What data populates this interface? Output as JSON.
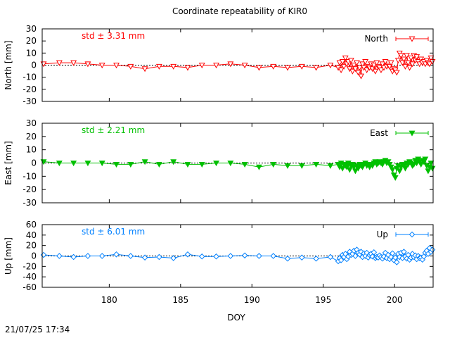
{
  "title": "Coordinate repeatability of KIR0",
  "xlabel": "DOY",
  "timestamp": "21/07/25 17:34",
  "colors": {
    "north": "#ff0000",
    "east": "#00c000",
    "up": "#0080ff"
  },
  "chart_data": [
    {
      "type": "line",
      "component": "North",
      "ylabel": "North [mm]",
      "stat": "std ± 3.31 mm",
      "legend": "North",
      "legend_position": "top-right",
      "marker": "triangle-down-open",
      "color": "#ff0000",
      "xlim": [
        175.3,
        202.7
      ],
      "ylim": [
        -30,
        30
      ],
      "yticks": [
        30,
        20,
        10,
        0,
        -10,
        -20,
        -30
      ],
      "xticks": [
        180,
        185,
        190,
        195,
        200
      ],
      "grid": false,
      "x": [
        175.4,
        176.5,
        177.5,
        178.5,
        179.5,
        180.5,
        181.5,
        182.5,
        183.5,
        184.5,
        185.5,
        186.5,
        187.5,
        188.5,
        189.5,
        190.5,
        191.5,
        192.5,
        193.5,
        194.5,
        195.5,
        196.05,
        196.15,
        196.25,
        196.35,
        196.45,
        196.55,
        196.65,
        196.75,
        196.85,
        196.95,
        197.05,
        197.15,
        197.25,
        197.35,
        197.45,
        197.55,
        197.65,
        197.75,
        197.85,
        197.95,
        198.05,
        198.15,
        198.25,
        198.35,
        198.45,
        198.55,
        198.65,
        198.75,
        198.85,
        198.95,
        199.05,
        199.15,
        199.25,
        199.35,
        199.45,
        199.55,
        199.65,
        199.75,
        199.85,
        199.95,
        200.05,
        200.15,
        200.25,
        200.35,
        200.45,
        200.55,
        200.65,
        200.75,
        200.85,
        200.95,
        201.05,
        201.15,
        201.25,
        201.35,
        201.45,
        201.55,
        201.65,
        201.75,
        201.85,
        201.95,
        202.05,
        202.15,
        202.25,
        202.35,
        202.45,
        202.55,
        202.65
      ],
      "y": [
        1,
        2,
        2,
        1,
        0,
        0,
        -1,
        -3,
        -1,
        -1,
        -2,
        0,
        0,
        1,
        0,
        -2,
        -1,
        -2,
        -1,
        -2,
        0,
        -2,
        2,
        -4,
        3,
        -1,
        6,
        1,
        3,
        -3,
        4,
        -5,
        0,
        -3,
        2,
        -6,
        -2,
        -9,
        1,
        -2,
        3,
        -4,
        -1,
        -2,
        1,
        -3,
        0,
        -5,
        2,
        -1,
        -2,
        -4,
        1,
        -2,
        3,
        -1,
        0,
        -1,
        2,
        -5,
        -3,
        -4,
        -6,
        4,
        10,
        8,
        2,
        5,
        -1,
        8,
        2,
        -2,
        6,
        1,
        8,
        4,
        7,
        3,
        1,
        5,
        2,
        3,
        1,
        4,
        2,
        1,
        6,
        3
      ]
    },
    {
      "type": "line",
      "component": "East",
      "ylabel": "East [mm]",
      "stat": "std ± 2.21 mm",
      "legend": "East",
      "legend_position": "top-right",
      "marker": "triangle-down-filled",
      "color": "#00c000",
      "xlim": [
        175.3,
        202.7
      ],
      "ylim": [
        -30,
        30
      ],
      "yticks": [
        30,
        20,
        10,
        0,
        -10,
        -20,
        -30
      ],
      "xticks": [
        180,
        185,
        190,
        195,
        200
      ],
      "grid": false,
      "x": [
        175.4,
        176.5,
        177.5,
        178.5,
        179.5,
        180.5,
        181.5,
        182.5,
        183.5,
        184.5,
        185.5,
        186.5,
        187.5,
        188.5,
        189.5,
        190.5,
        191.5,
        192.5,
        193.5,
        194.5,
        195.5,
        196.05,
        196.15,
        196.25,
        196.35,
        196.45,
        196.55,
        196.65,
        196.75,
        196.85,
        196.95,
        197.05,
        197.15,
        197.25,
        197.35,
        197.45,
        197.55,
        197.65,
        197.75,
        197.85,
        197.95,
        198.05,
        198.15,
        198.25,
        198.35,
        198.45,
        198.55,
        198.65,
        198.75,
        198.85,
        198.95,
        199.05,
        199.15,
        199.25,
        199.35,
        199.45,
        199.55,
        199.65,
        199.75,
        199.85,
        199.95,
        200.05,
        200.15,
        200.25,
        200.35,
        200.45,
        200.55,
        200.65,
        200.75,
        200.85,
        200.95,
        201.05,
        201.15,
        201.25,
        201.35,
        201.45,
        201.55,
        201.65,
        201.75,
        201.85,
        201.95,
        202.05,
        202.15,
        202.25,
        202.35,
        202.45,
        202.55,
        202.65
      ],
      "y": [
        1,
        0,
        0,
        0,
        0,
        -1,
        -1,
        1,
        -1,
        1,
        -1,
        -1,
        0,
        0,
        -1,
        -3,
        -1,
        -2,
        -2,
        -1,
        -2,
        -1,
        -3,
        0,
        -4,
        -1,
        -2,
        -3,
        0,
        -5,
        -2,
        -1,
        -3,
        -6,
        -2,
        -4,
        -1,
        -2,
        -3,
        -1,
        0,
        -2,
        -1,
        -3,
        -1,
        -2,
        0,
        1,
        -1,
        0,
        1,
        0,
        -1,
        1,
        2,
        0,
        1,
        -1,
        -3,
        -5,
        -9,
        -11,
        -4,
        -2,
        -6,
        -3,
        -1,
        -2,
        -4,
        0,
        -1,
        1,
        0,
        -2,
        -1,
        2,
        0,
        3,
        1,
        -1,
        2,
        1,
        3,
        -2,
        -6,
        -3,
        0,
        -4
      ]
    },
    {
      "type": "line",
      "component": "Up",
      "ylabel": "Up [mm]",
      "stat": "std ± 6.01 mm",
      "legend": "Up",
      "legend_position": "top-right",
      "marker": "diamond-open",
      "color": "#0080ff",
      "xlim": [
        175.3,
        202.7
      ],
      "ylim": [
        -60,
        60
      ],
      "yticks": [
        60,
        40,
        20,
        0,
        -20,
        -40,
        -60
      ],
      "xticks": [
        180,
        185,
        190,
        195,
        200
      ],
      "grid": false,
      "x": [
        175.4,
        176.5,
        177.5,
        178.5,
        179.5,
        180.5,
        181.5,
        182.5,
        183.5,
        184.5,
        185.5,
        186.5,
        187.5,
        188.5,
        189.5,
        190.5,
        191.5,
        192.5,
        193.5,
        194.5,
        195.5,
        196.05,
        196.15,
        196.25,
        196.35,
        196.45,
        196.55,
        196.65,
        196.75,
        196.85,
        196.95,
        197.05,
        197.15,
        197.25,
        197.35,
        197.45,
        197.55,
        197.65,
        197.75,
        197.85,
        197.95,
        198.05,
        198.15,
        198.25,
        198.35,
        198.45,
        198.55,
        198.65,
        198.75,
        198.85,
        198.95,
        199.05,
        199.15,
        199.25,
        199.35,
        199.45,
        199.55,
        199.65,
        199.75,
        199.85,
        199.95,
        200.05,
        200.15,
        200.25,
        200.35,
        200.45,
        200.55,
        200.65,
        200.75,
        200.85,
        200.95,
        201.05,
        201.15,
        201.25,
        201.35,
        201.45,
        201.55,
        201.65,
        201.75,
        201.85,
        201.95,
        202.05,
        202.15,
        202.25,
        202.35,
        202.45,
        202.55,
        202.65
      ],
      "y": [
        2,
        0,
        -2,
        0,
        0,
        3,
        0,
        -3,
        -2,
        -4,
        3,
        -1,
        -1,
        0,
        1,
        0,
        0,
        -5,
        -3,
        -5,
        -2,
        -10,
        -4,
        -8,
        2,
        -2,
        4,
        -6,
        -1,
        8,
        2,
        4,
        10,
        0,
        12,
        6,
        3,
        8,
        -2,
        5,
        0,
        6,
        -3,
        2,
        4,
        -1,
        7,
        -4,
        -2,
        -3,
        1,
        -2,
        -5,
        -1,
        6,
        -4,
        2,
        -6,
        -2,
        5,
        -8,
        -3,
        -12,
        4,
        -2,
        6,
        -4,
        8,
        -1,
        -5,
        2,
        -7,
        -3,
        4,
        -2,
        1,
        -6,
        0,
        -4,
        -3,
        -7,
        -1,
        6,
        10,
        4,
        15,
        8,
        12
      ]
    }
  ]
}
